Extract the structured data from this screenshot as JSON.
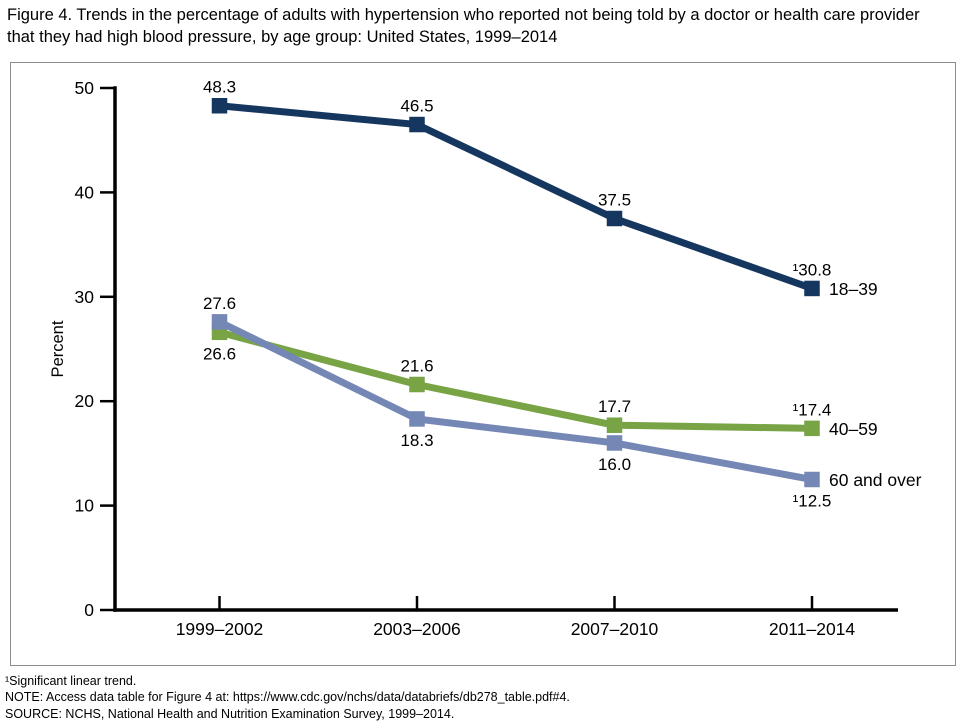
{
  "title": "Figure 4. Trends in the percentage of adults with hypertension who reported not being told by a doctor or health care provider that they had high blood pressure, by age group: United States, 1999–2014",
  "chart_data": {
    "type": "line",
    "title": "",
    "xlabel": "",
    "ylabel": "Percent",
    "ylim": [
      0,
      50
    ],
    "yticks": [
      0,
      10,
      20,
      30,
      40,
      50
    ],
    "categories": [
      "1999–2002",
      "2003–2006",
      "2007–2010",
      "2011–2014"
    ],
    "grid": false,
    "legend_position": "end-of-line",
    "marker": "square",
    "series": [
      {
        "name": "40–59",
        "color": "#78a446",
        "values": [
          26.6,
          21.6,
          17.7,
          17.4
        ],
        "labels": [
          "26.6",
          "21.6",
          "17.7",
          "¹17.4"
        ],
        "label_pos": [
          "below",
          "above",
          "above",
          "above"
        ]
      },
      {
        "name": "60 and over",
        "color": "#7487b5",
        "values": [
          27.6,
          18.3,
          16.0,
          12.5
        ],
        "labels": [
          "27.6",
          "18.3",
          "16.0",
          "¹12.5"
        ],
        "label_pos": [
          "above",
          "below",
          "below",
          "below"
        ]
      },
      {
        "name": "18–39",
        "color": "#15365f",
        "values": [
          48.3,
          46.5,
          37.5,
          30.8
        ],
        "labels": [
          "48.3",
          "46.5",
          "37.5",
          "¹30.8"
        ],
        "label_pos": [
          "above",
          "above",
          "above",
          "above"
        ]
      }
    ]
  },
  "footnotes": [
    "¹Significant linear trend.",
    "NOTE: Access data table for Figure 4 at: https://www.cdc.gov/nchs/data/databriefs/db278_table.pdf#4.",
    "SOURCE: NCHS, National Health and Nutrition Examination Survey, 1999–2014."
  ]
}
